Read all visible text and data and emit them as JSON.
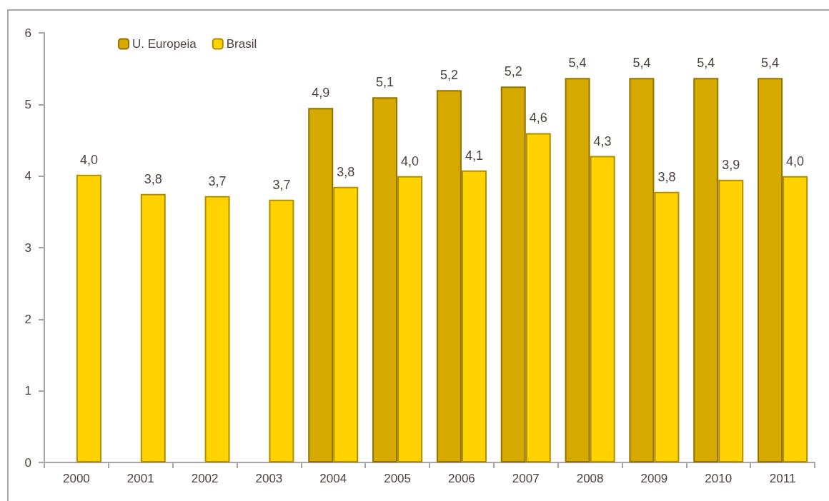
{
  "chart_data": {
    "type": "bar",
    "categories": [
      "2000",
      "2001",
      "2002",
      "2003",
      "2004",
      "2005",
      "2006",
      "2007",
      "2008",
      "2009",
      "2010",
      "2011"
    ],
    "series": [
      {
        "name": "U. Europeia",
        "color": "#d6a900",
        "values": [
          null,
          null,
          null,
          null,
          4.95,
          5.1,
          5.2,
          5.25,
          5.37,
          5.37,
          5.37,
          5.37
        ],
        "value_labels": [
          null,
          null,
          null,
          null,
          "4,9",
          "5,1",
          "5,2",
          "5,2",
          "5,4",
          "5,4",
          "5,4",
          "5,4"
        ]
      },
      {
        "name": "Brasil",
        "color": "#ffd200",
        "values": [
          4.02,
          3.75,
          3.72,
          3.67,
          3.85,
          4.0,
          4.08,
          4.6,
          4.28,
          3.78,
          3.95,
          4.0
        ],
        "value_labels": [
          "4,0",
          "3,8",
          "3,7",
          "3,7",
          "3,8",
          "4,0",
          "4,1",
          "4,6",
          "4,3",
          "3,8",
          "3,9",
          "4,0"
        ]
      }
    ],
    "ylim": [
      0,
      6
    ],
    "yticks": [
      0,
      1,
      2,
      3,
      4,
      5,
      6
    ],
    "grid": false,
    "legend": "top left"
  }
}
